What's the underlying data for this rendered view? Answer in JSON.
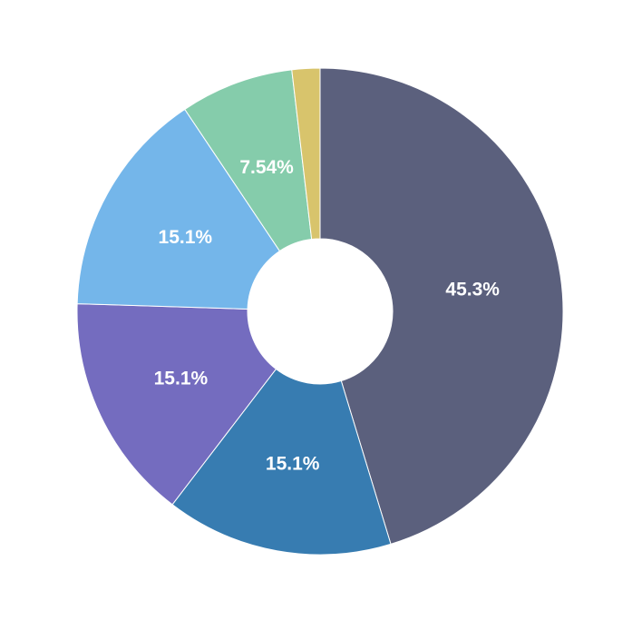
{
  "page": {
    "background_color": "#ffffff"
  },
  "chart_data": {
    "type": "pie",
    "subtype": "donut",
    "title": "",
    "legend": "none",
    "direction": "clockwise",
    "start_angle_deg": 0,
    "label_color": "#ffffff",
    "separator_color": "#ffffff",
    "slices": [
      {
        "name": "slice-1",
        "label": "45.3%",
        "value": 45.3,
        "color": "#5B607D"
      },
      {
        "name": "slice-2",
        "label": "15.1%",
        "value": 15.1,
        "color": "#377CB1"
      },
      {
        "name": "slice-3",
        "label": "15.1%",
        "value": 15.1,
        "color": "#746CBF"
      },
      {
        "name": "slice-4",
        "label": "15.1%",
        "value": 15.1,
        "color": "#74B6EA"
      },
      {
        "name": "slice-5",
        "label": "7.54%",
        "value": 7.54,
        "color": "#85CCAB"
      },
      {
        "name": "slice-6",
        "label": "",
        "value": 1.86,
        "color": "#D8C46C"
      }
    ]
  }
}
